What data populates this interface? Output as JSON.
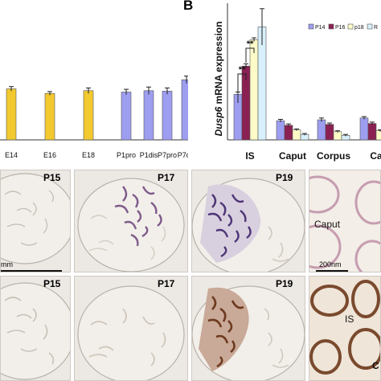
{
  "figure": {
    "panel_b_letter": "B",
    "chart_a": {
      "categories": [
        "E14",
        "E16",
        "E18",
        "P1pro",
        "P1dis",
        "P7pro",
        "P7dis"
      ]
    },
    "chart_b": {
      "ylabel_gene": "Dusp6",
      "ylabel_rest": " mRNA expression",
      "categories": [
        "IS",
        "Caput",
        "Corpus",
        "Ca"
      ],
      "legend": [
        "P14",
        "P16",
        "p18",
        "R"
      ],
      "significance": [
        "**",
        "**"
      ]
    },
    "micro_top": {
      "labels": [
        "P15",
        "P17",
        "P19"
      ],
      "scale_text": "mm",
      "inset_label": "Caput",
      "inset_scale": "200nm"
    },
    "micro_bottom": {
      "labels": [
        "P15",
        "P17",
        "P19"
      ],
      "inset_label": "IS",
      "inset_label2": "C"
    }
  },
  "chart_data": [
    {
      "type": "bar",
      "title": "",
      "categories": [
        "E14",
        "E16",
        "E18",
        "P1pro",
        "P1dis",
        "P7pro",
        "P7dis"
      ],
      "values": [
        1.12,
        1.02,
        1.08,
        1.05,
        1.08,
        1.07,
        1.32
      ],
      "errors": [
        0.05,
        0.04,
        0.06,
        0.06,
        0.08,
        0.07,
        0.08
      ],
      "colors": [
        "#f2c92f",
        "#f2c92f",
        "#f2c92f",
        "#9d9ef0",
        "#9d9ef0",
        "#9d9ef0",
        "#9d9ef0"
      ],
      "xlabel": "",
      "ylabel": "",
      "ylim": [
        0,
        3
      ]
    },
    {
      "type": "bar",
      "title": "",
      "categories": [
        "IS",
        "Caput",
        "Corpus",
        "Ca"
      ],
      "series": [
        {
          "name": "P14",
          "values": [
            1.0,
            0.42,
            0.44,
            0.48
          ],
          "errors": [
            0.05,
            0.03,
            0.04,
            0.03
          ],
          "color": "#9d9ef0"
        },
        {
          "name": "P16",
          "values": [
            1.62,
            0.32,
            0.34,
            0.36
          ],
          "errors": [
            0.05,
            0.03,
            0.03,
            0.03
          ],
          "color": "#8b2152"
        },
        {
          "name": "p18",
          "values": [
            2.2,
            0.22,
            0.18,
            0.2
          ],
          "errors": [
            0.04,
            0.02,
            0.02,
            0.02
          ],
          "color": "#fdfbc8"
        },
        {
          "name": "R",
          "values": [
            2.48,
            0.12,
            0.1,
            0.12
          ],
          "errors": [
            0.4,
            0.02,
            0.02,
            0.02
          ],
          "color": "#d8f0fb"
        }
      ],
      "ylabel": "Dusp6 mRNA expression",
      "ylim": [
        0,
        3
      ]
    }
  ]
}
